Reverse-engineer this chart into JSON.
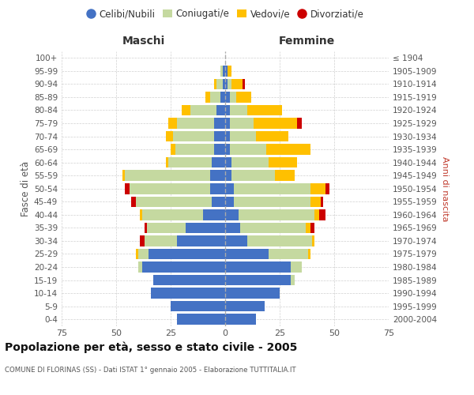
{
  "age_groups": [
    "0-4",
    "5-9",
    "10-14",
    "15-19",
    "20-24",
    "25-29",
    "30-34",
    "35-39",
    "40-44",
    "45-49",
    "50-54",
    "55-59",
    "60-64",
    "65-69",
    "70-74",
    "75-79",
    "80-84",
    "85-89",
    "90-94",
    "95-99",
    "100+"
  ],
  "birth_years": [
    "2000-2004",
    "1995-1999",
    "1990-1994",
    "1985-1989",
    "1980-1984",
    "1975-1979",
    "1970-1974",
    "1965-1969",
    "1960-1964",
    "1955-1959",
    "1950-1954",
    "1945-1949",
    "1940-1944",
    "1935-1939",
    "1930-1934",
    "1925-1929",
    "1920-1924",
    "1915-1919",
    "1910-1914",
    "1905-1909",
    "≤ 1904"
  ],
  "males": {
    "celibe": [
      22,
      25,
      34,
      33,
      38,
      35,
      22,
      18,
      10,
      6,
      7,
      7,
      6,
      5,
      5,
      5,
      4,
      2,
      1,
      1,
      0
    ],
    "coniugato": [
      0,
      0,
      0,
      0,
      2,
      5,
      15,
      18,
      28,
      35,
      37,
      39,
      20,
      18,
      19,
      17,
      12,
      5,
      3,
      1,
      0
    ],
    "vedovo": [
      0,
      0,
      0,
      0,
      0,
      1,
      0,
      0,
      1,
      0,
      0,
      1,
      1,
      2,
      3,
      4,
      4,
      2,
      1,
      0,
      0
    ],
    "divorziato": [
      0,
      0,
      0,
      0,
      0,
      0,
      2,
      1,
      0,
      2,
      2,
      0,
      0,
      0,
      0,
      0,
      0,
      0,
      0,
      0,
      0
    ]
  },
  "females": {
    "nubile": [
      14,
      18,
      25,
      30,
      30,
      20,
      10,
      7,
      6,
      4,
      4,
      3,
      3,
      2,
      2,
      2,
      2,
      2,
      1,
      1,
      0
    ],
    "coniugata": [
      0,
      0,
      0,
      2,
      5,
      18,
      30,
      30,
      35,
      35,
      35,
      20,
      17,
      17,
      12,
      11,
      8,
      3,
      2,
      0,
      0
    ],
    "vedova": [
      0,
      0,
      0,
      0,
      0,
      1,
      1,
      2,
      2,
      5,
      7,
      9,
      13,
      20,
      15,
      20,
      16,
      7,
      5,
      2,
      0
    ],
    "divorziata": [
      0,
      0,
      0,
      0,
      0,
      0,
      0,
      2,
      3,
      1,
      2,
      0,
      0,
      0,
      0,
      2,
      0,
      0,
      1,
      0,
      0
    ]
  },
  "colors": {
    "celibe": "#4472C4",
    "coniugato": "#c5d9a0",
    "vedovo": "#ffc000",
    "divorziato": "#cc0000"
  },
  "xlim": 75,
  "title": "Popolazione per età, sesso e stato civile - 2005",
  "subtitle": "COMUNE DI FLORINAS (SS) - Dati ISTAT 1° gennaio 2005 - Elaborazione TUTTITALIA.IT",
  "ylabel_left": "Fasce di età",
  "ylabel_right": "Anni di nascita",
  "xlabel_left": "Maschi",
  "xlabel_right": "Femmine",
  "legend_labels": [
    "Celibi/Nubili",
    "Coniugati/e",
    "Vedovi/e",
    "Divorziati/e"
  ],
  "bg_color": "#ffffff",
  "grid_color": "#cccccc"
}
